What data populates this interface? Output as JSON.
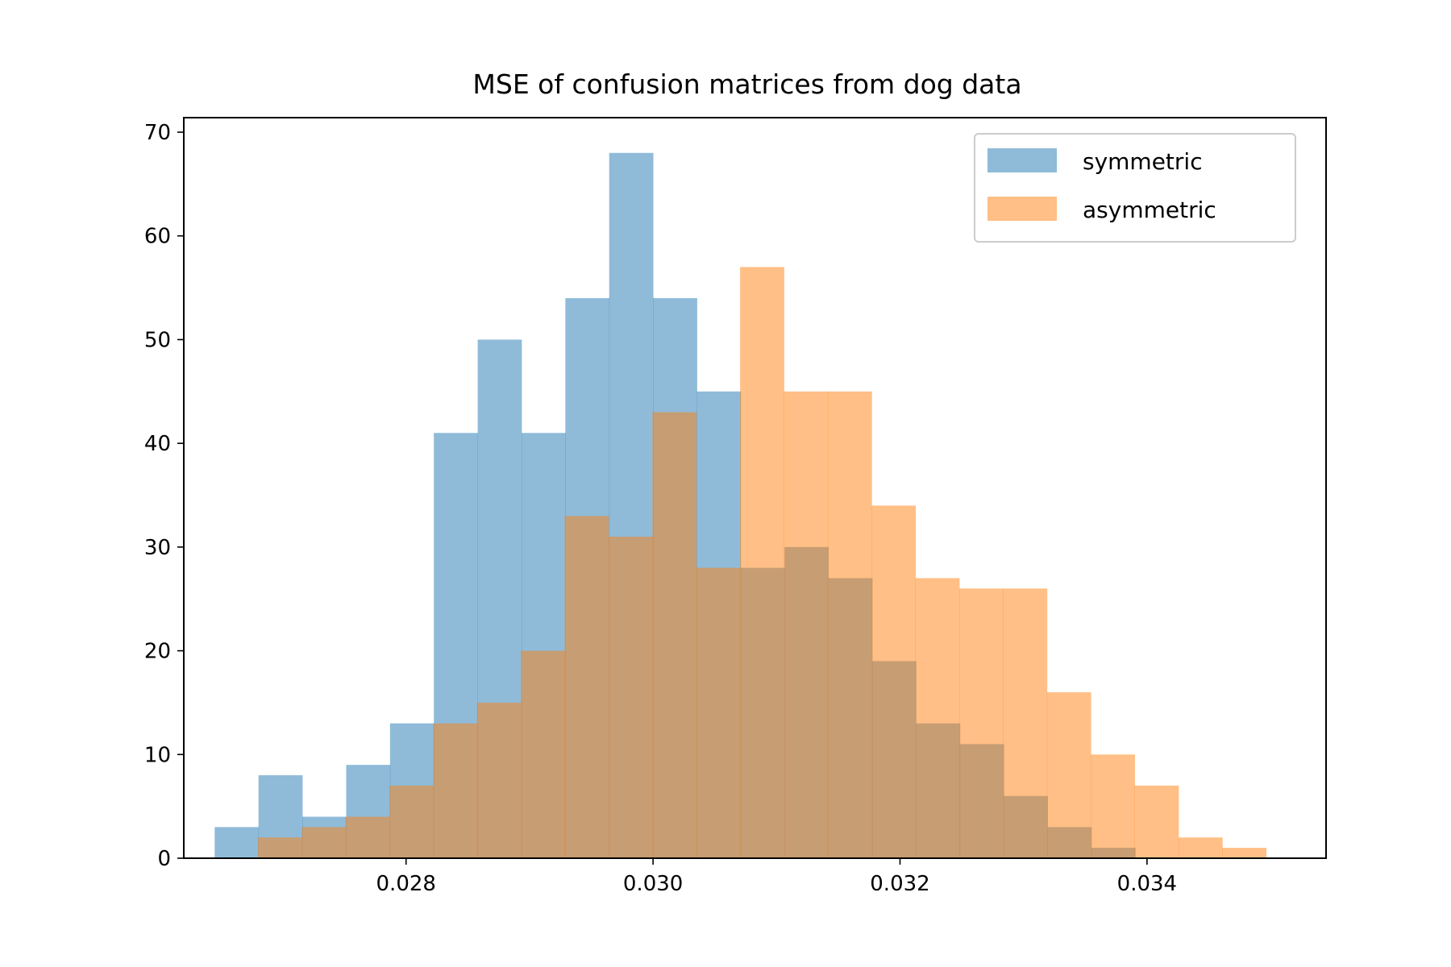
{
  "chart_data": {
    "type": "bar",
    "title": "MSE of confusion matrices from dog data",
    "xlabel": "",
    "ylabel": "",
    "xlim": [
      0.0262,
      0.03545
    ],
    "ylim": [
      0,
      71.4
    ],
    "grid": false,
    "legend_position": "top-right",
    "x_ticks": [
      {
        "value": 0.028,
        "label": "0.028"
      },
      {
        "value": 0.03,
        "label": "0.030"
      },
      {
        "value": 0.032,
        "label": "0.032"
      },
      {
        "value": 0.034,
        "label": "0.034"
      }
    ],
    "y_ticks": [
      {
        "value": 0,
        "label": "0"
      },
      {
        "value": 10,
        "label": "10"
      },
      {
        "value": 20,
        "label": "20"
      },
      {
        "value": 30,
        "label": "30"
      },
      {
        "value": 40,
        "label": "40"
      },
      {
        "value": 50,
        "label": "50"
      },
      {
        "value": 60,
        "label": "60"
      },
      {
        "value": 70,
        "label": "70"
      }
    ],
    "series": [
      {
        "name": "symmetric",
        "color": "#1f77b4",
        "opacity": 0.5,
        "bin_start": 0.02645,
        "bin_width": 0.000355,
        "counts": [
          3,
          8,
          4,
          9,
          13,
          41,
          50,
          41,
          54,
          68,
          54,
          45,
          28,
          30,
          27,
          19,
          13,
          11,
          6,
          3,
          1
        ]
      },
      {
        "name": "asymmetric",
        "color": "#ff7f0e",
        "opacity": 0.5,
        "bin_start": 0.0268,
        "bin_width": 0.000355,
        "counts": [
          2,
          3,
          4,
          7,
          13,
          15,
          20,
          33,
          31,
          43,
          28,
          57,
          45,
          45,
          34,
          27,
          26,
          26,
          16,
          10,
          7,
          2,
          1
        ]
      }
    ]
  }
}
